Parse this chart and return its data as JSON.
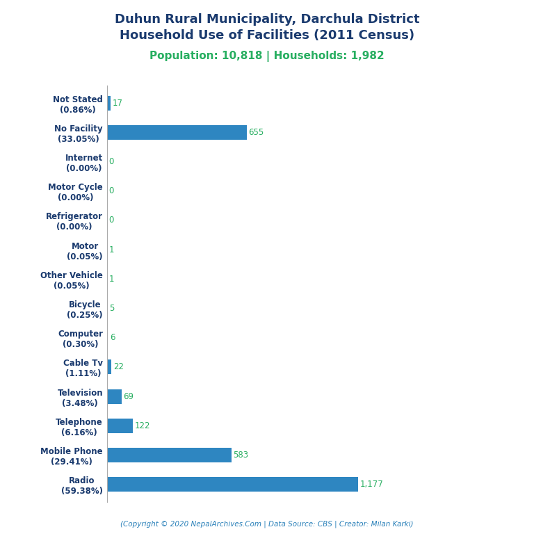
{
  "title_line1": "Duhun Rural Municipality, Darchula District",
  "title_line2": "Household Use of Facilities (2011 Census)",
  "subtitle": "Population: 10,818 | Households: 1,982",
  "copyright": "(Copyright © 2020 NepalArchives.Com | Data Source: CBS | Creator: Milan Karki)",
  "categories": [
    "Radio\n(59.38%)",
    "Mobile Phone\n(29.41%)",
    "Telephone\n(6.16%)",
    "Television\n(3.48%)",
    "Cable Tv\n(1.11%)",
    "Computer\n(0.30%)",
    "Bicycle\n(0.25%)",
    "Other Vehicle\n(0.05%)",
    "Motor\n(0.05%)",
    "Refrigerator\n(0.00%)",
    "Motor Cycle\n(0.00%)",
    "Internet\n(0.00%)",
    "No Facility\n(33.05%)",
    "Not Stated\n(0.86%)"
  ],
  "values": [
    1177,
    583,
    122,
    69,
    22,
    6,
    5,
    1,
    1,
    0,
    0,
    0,
    655,
    17
  ],
  "bar_color": "#2e86c1",
  "value_color": "#27ae60",
  "title_color": "#1a3a6e",
  "subtitle_color": "#27ae60",
  "copyright_color": "#2980b9",
  "background_color": "#ffffff",
  "title_fontsize": 13,
  "subtitle_fontsize": 11,
  "label_fontsize": 8.5,
  "value_fontsize": 8.5,
  "copyright_fontsize": 7.5,
  "xlim": 1800,
  "bar_height": 0.5
}
